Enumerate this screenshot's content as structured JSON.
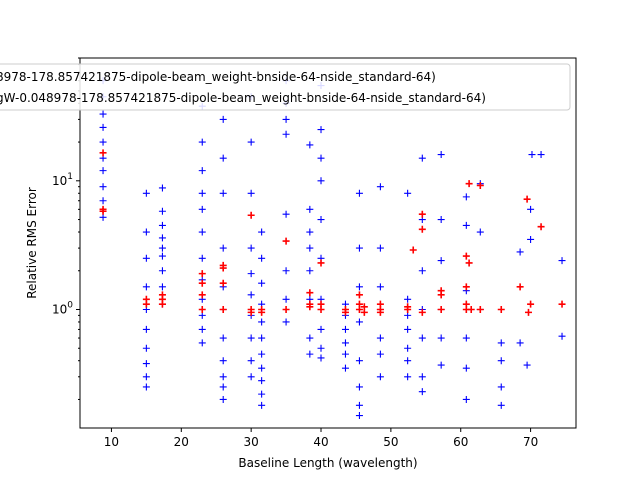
{
  "chart_data": {
    "type": "scatter",
    "xlabel": "Baseline Length (wavelength)",
    "ylabel": "Relative RMS Error",
    "xlim": [
      5.5,
      76.5
    ],
    "ylim": [
      0.12,
      90
    ],
    "y_scale": "log",
    "x_ticks": [
      10,
      20,
      30,
      40,
      50,
      60,
      70
    ],
    "y_ticks": [
      {
        "value": 1,
        "label": "10^0"
      },
      {
        "value": 10,
        "label": "10^1"
      }
    ],
    "grid": false,
    "legend_placement": "top",
    "series": [
      {
        "name": "8978-178.857421875-dipole-beam_weight-bnside-64-nside_standard-64)",
        "marker": "+",
        "color": "#0000ff",
        "x": [
          8.8,
          8.8,
          8.8,
          8.8,
          8.8,
          8.8,
          8.8,
          8.8,
          8.8,
          8.8,
          15,
          15,
          15,
          15,
          15,
          15,
          15,
          15,
          15,
          15,
          17.3,
          17.3,
          17.3,
          17.3,
          17.3,
          17.3,
          17.3,
          17.3,
          17.3,
          23,
          23,
          23,
          23,
          23,
          23,
          23,
          23,
          23,
          23,
          23,
          23,
          26,
          26,
          26,
          26,
          26,
          26,
          26,
          26,
          26,
          26,
          26,
          30,
          30,
          30,
          30,
          30,
          30,
          30,
          30,
          30,
          30,
          31.5,
          31.5,
          31.5,
          31.5,
          31.5,
          31.5,
          31.5,
          31.5,
          31.5,
          31.5,
          31.5,
          35,
          35,
          35,
          35,
          35,
          35,
          35,
          35,
          38.4,
          38.4,
          38.4,
          38.4,
          38.4,
          38.4,
          38.4,
          38.4,
          40,
          40,
          40,
          40,
          40,
          40,
          40,
          40,
          40,
          40,
          43.5,
          43.5,
          43.5,
          43.5,
          43.5,
          43.5,
          45.5,
          45.5,
          45.5,
          45.5,
          45.5,
          45.5,
          45.5,
          45.5,
          48.5,
          48.5,
          48.5,
          48.5,
          48.5,
          48.5,
          48.5,
          52.4,
          52.4,
          52.4,
          52.4,
          52.4,
          52.4,
          52.4,
          54.5,
          54.5,
          54.5,
          54.5,
          54.5,
          54.5,
          54.5,
          57.2,
          57.2,
          57.2,
          57.2,
          57.2,
          57.2,
          60.8,
          60.8,
          60.8,
          60.8,
          60.8,
          60.8,
          62.8,
          62.8,
          62.8,
          65.8,
          65.8,
          65.8,
          65.8,
          68.5,
          68.5,
          69.5,
          70,
          70,
          70.2,
          71.5,
          74.5,
          74.5
        ],
        "y": [
          5.2,
          7,
          9,
          12,
          15,
          20,
          26,
          33,
          45,
          60,
          0.25,
          0.3,
          0.38,
          0.5,
          0.7,
          1,
          1.5,
          2.5,
          4,
          8,
          1.1,
          1.5,
          2,
          2.6,
          3,
          3.6,
          4.5,
          5.8,
          8.8,
          0.55,
          0.7,
          0.9,
          1.2,
          1.7,
          2.5,
          4,
          6,
          8,
          12,
          20,
          38,
          0.2,
          0.25,
          0.3,
          0.4,
          0.6,
          1,
          1.5,
          3,
          8,
          15,
          30,
          0.3,
          0.4,
          0.6,
          0.9,
          1.3,
          1.9,
          3,
          8,
          20,
          45,
          0.18,
          0.22,
          0.28,
          0.35,
          0.45,
          0.6,
          0.8,
          1.1,
          1.6,
          2.5,
          4,
          0.8,
          1.2,
          2,
          5.5,
          23,
          30,
          40,
          60,
          0.45,
          0.6,
          1.2,
          2,
          3,
          4,
          6,
          19,
          0.42,
          0.5,
          0.7,
          1.2,
          2.5,
          5,
          10,
          15,
          25,
          55,
          0.35,
          0.45,
          0.55,
          0.7,
          0.9,
          1.1,
          0.15,
          0.18,
          0.25,
          0.4,
          0.8,
          1.5,
          3,
          8,
          0.3,
          0.45,
          0.6,
          1,
          1.5,
          3,
          9,
          0.3,
          0.4,
          0.5,
          0.7,
          0.9,
          1.2,
          8,
          0.23,
          0.3,
          0.6,
          1,
          2,
          5,
          15,
          0.37,
          0.6,
          1,
          2.4,
          5,
          16,
          0.2,
          0.35,
          0.6,
          1.4,
          4.5,
          7.5,
          1,
          4,
          9.5,
          0.18,
          0.25,
          0.4,
          0.55,
          0.55,
          2.8,
          0.37,
          3.5,
          6,
          16,
          16,
          0.62,
          2.4
        ]
      },
      {
        "name": "gW-0.048978-178.857421875-dipole-beam_weight-bnside-64-nside_standard-64)",
        "marker": "+",
        "color": "#ff0000",
        "x": [
          8.8,
          8.8,
          8.8,
          15,
          15,
          17.3,
          17.3,
          17.3,
          23,
          23,
          23,
          23,
          26,
          26,
          26,
          26,
          30,
          30,
          30,
          31.5,
          31.5,
          35,
          35,
          38.4,
          38.4,
          38.4,
          40,
          40,
          40,
          43.5,
          43.5,
          45.5,
          45.5,
          45.5,
          46.2,
          46.2,
          48.5,
          48.5,
          48.5,
          52.4,
          52.4,
          53.2,
          54.5,
          54.5,
          54.5,
          57.2,
          57.2,
          57.2,
          60.8,
          60.8,
          60.8,
          60.8,
          61.2,
          61.2,
          61.5,
          62.8,
          62.8,
          65.8,
          68.5,
          69.5,
          69.7,
          70,
          71.5,
          74.5
        ],
        "y": [
          5.8,
          16.5,
          6,
          1.1,
          1.2,
          1.1,
          1.3,
          1.2,
          1,
          1.3,
          1.6,
          1.9,
          1,
          1.6,
          2.1,
          2.2,
          0.95,
          1,
          5.4,
          0.95,
          1,
          1,
          3.4,
          1.05,
          1.35,
          1.1,
          1,
          1.1,
          2.3,
          1,
          0.95,
          1,
          1.3,
          1.1,
          1.05,
          0.95,
          1,
          1.1,
          0.95,
          1,
          1.05,
          2.9,
          0.95,
          4.2,
          5.5,
          1,
          1.3,
          1.4,
          1,
          1.1,
          1.5,
          2.6,
          9.5,
          2.3,
          1,
          1,
          9.2,
          1,
          1.5,
          7.2,
          0.95,
          1.1,
          4.4,
          1.1
        ]
      }
    ]
  }
}
